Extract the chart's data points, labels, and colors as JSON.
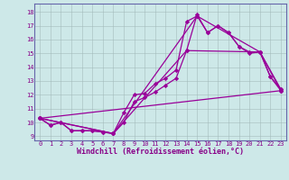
{
  "xlabel": "Windchill (Refroidissement éolien,°C)",
  "bg_color": "#cde8e8",
  "line_color": "#990099",
  "marker": "D",
  "markersize": 2.2,
  "linewidth": 0.9,
  "ylim": [
    8.7,
    18.6
  ],
  "xlim": [
    -0.5,
    23.5
  ],
  "yticks": [
    9,
    10,
    11,
    12,
    13,
    14,
    15,
    16,
    17,
    18
  ],
  "xticks": [
    0,
    1,
    2,
    3,
    4,
    5,
    6,
    7,
    8,
    9,
    10,
    11,
    12,
    13,
    14,
    15,
    16,
    17,
    18,
    19,
    20,
    21,
    22,
    23
  ],
  "line1_x": [
    0,
    1,
    2,
    3,
    4,
    5,
    6,
    7,
    8,
    9,
    10,
    11,
    12,
    13,
    14,
    15,
    16,
    17,
    18,
    19,
    20,
    21,
    22,
    23
  ],
  "line1_y": [
    10.3,
    9.8,
    10.0,
    9.4,
    9.4,
    9.4,
    9.3,
    9.2,
    10.7,
    12.0,
    12.1,
    12.8,
    13.2,
    13.8,
    17.3,
    17.7,
    16.5,
    17.0,
    16.5,
    15.5,
    15.0,
    15.1,
    13.3,
    12.3
  ],
  "line2_x": [
    0,
    1,
    2,
    3,
    4,
    5,
    6,
    7,
    8,
    9,
    10,
    11,
    12,
    13,
    14,
    15,
    16,
    17,
    18,
    19,
    20,
    21,
    22,
    23
  ],
  "line2_y": [
    10.3,
    9.8,
    10.0,
    9.4,
    9.4,
    9.4,
    9.3,
    9.2,
    10.0,
    11.5,
    11.8,
    12.2,
    12.7,
    13.2,
    15.2,
    17.8,
    16.5,
    17.0,
    16.5,
    15.5,
    15.1,
    15.1,
    13.3,
    12.4
  ],
  "line3_x": [
    0,
    7,
    15,
    21,
    23
  ],
  "line3_y": [
    10.3,
    9.2,
    17.7,
    15.1,
    12.3
  ],
  "line4_x": [
    0,
    7,
    14,
    21,
    23
  ],
  "line4_y": [
    10.3,
    9.2,
    15.2,
    15.1,
    12.4
  ],
  "line5_x": [
    0,
    23
  ],
  "line5_y": [
    10.3,
    12.3
  ],
  "font_color": "#880088",
  "tick_fontsize": 5.0,
  "label_fontsize": 6.0
}
